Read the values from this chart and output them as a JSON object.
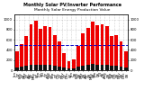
{
  "title": "Monthly Solar PV/Inverter Performance",
  "subtitle": "Monthly Solar Energy Production Value",
  "background_color": "#ffffff",
  "grid_color": "#aaaaaa",
  "bar_color_red": "#ee0000",
  "bar_color_dark": "#111111",
  "blue_line_value": 500,
  "months": [
    "Jan\n07",
    "Feb\n07",
    "Mar\n07",
    "Apr\n07",
    "May\n07",
    "Jun\n07",
    "Jul\n07",
    "Aug\n07",
    "Sep\n07",
    "Oct\n07",
    "Nov\n07",
    "Dec\n07",
    "Jan\n08",
    "Feb\n08",
    "Mar\n08",
    "Apr\n08",
    "May\n08",
    "Jun\n08",
    "Jul\n08",
    "Aug\n08",
    "Sep\n08",
    "Oct\n08",
    "Nov\n08",
    "Dec\n08"
  ],
  "red_values": [
    380,
    520,
    680,
    900,
    980,
    820,
    870,
    860,
    700,
    560,
    340,
    180,
    220,
    480,
    720,
    840,
    950,
    880,
    900,
    870,
    680,
    700,
    560,
    380
  ],
  "dark_values": [
    55,
    75,
    90,
    105,
    115,
    100,
    108,
    106,
    92,
    78,
    58,
    38,
    42,
    70,
    95,
    108,
    118,
    110,
    112,
    108,
    90,
    92,
    78,
    58
  ],
  "ylim": [
    0,
    1100
  ],
  "yticks": [
    0,
    200,
    400,
    600,
    800,
    1000
  ],
  "ytick_labels": [
    "0",
    "200",
    "400",
    "600",
    "800",
    "1000"
  ],
  "title_fontsize": 3.8,
  "tick_fontsize": 2.8,
  "bar_width": 0.72
}
